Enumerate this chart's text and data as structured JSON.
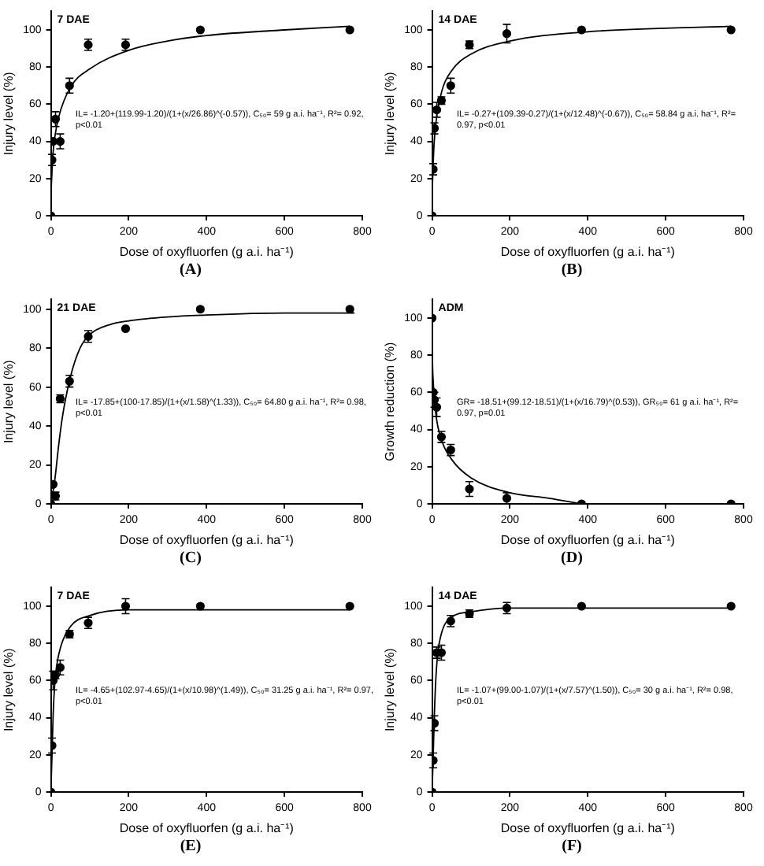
{
  "chart_data": [
    {
      "type": "scatter",
      "title": "7 DAE",
      "xlabel": "Dose of oxyfluorfen (g a.i. ha⁻¹)",
      "ylabel": "Injury level (%)",
      "xlim": [
        0,
        800
      ],
      "xticks": [
        0,
        200,
        400,
        600,
        800
      ],
      "ylim": [
        0,
        110
      ],
      "yticks": [
        0,
        20,
        40,
        60,
        80,
        100
      ],
      "grid": false,
      "annotations": [
        "IL= -1.20+(119.99-1.20)/(1+(x/26.86)^(-0.57)), C₅₀= 59 g a.i. ha⁻¹, R²= 0.92, p<0.01",
        "(A)"
      ],
      "series": [
        {
          "type": "scatter",
          "marker": "circle",
          "color": "#000000",
          "x": [
            0,
            3,
            6,
            12,
            24,
            48,
            96,
            192,
            384,
            768
          ],
          "values": [
            0,
            30,
            40,
            52,
            40,
            70,
            92,
            92,
            100,
            100
          ],
          "errors": [
            null,
            3,
            null,
            4,
            4,
            4,
            3,
            3,
            null,
            null
          ]
        },
        {
          "type": "line",
          "marker": "none",
          "color": "#000000",
          "x": [
            1,
            5,
            10,
            20,
            50,
            100,
            200,
            300,
            400,
            600,
            768
          ],
          "values": [
            15,
            32,
            42,
            53,
            69,
            79,
            89,
            94,
            97,
            100,
            102
          ]
        }
      ]
    },
    {
      "type": "scatter",
      "title": "14 DAE",
      "xlabel": "Dose of oxyfluorfen (g a.i. ha⁻¹)",
      "ylabel": "Injury level (%)",
      "xlim": [
        0,
        800
      ],
      "xticks": [
        0,
        200,
        400,
        600,
        800
      ],
      "ylim": [
        0,
        110
      ],
      "yticks": [
        0,
        20,
        40,
        60,
        80,
        100
      ],
      "grid": false,
      "annotations": [
        "IL= -0.27+(109.39-0.27)/(1+(x/12.48)^(-0.67)), C₅₀= 58.84 g a.i. ha⁻¹, R²= 0.97, p<0.01",
        "(B)"
      ],
      "series": [
        {
          "type": "scatter",
          "marker": "circle",
          "color": "#000000",
          "x": [
            0,
            3,
            6,
            12,
            24,
            48,
            96,
            192,
            384,
            768
          ],
          "values": [
            0,
            25,
            47,
            57,
            62,
            70,
            92,
            98,
            100,
            100
          ],
          "errors": [
            null,
            3,
            3,
            4,
            2,
            4,
            2,
            5,
            null,
            null
          ]
        },
        {
          "type": "line",
          "marker": "none",
          "color": "#000000",
          "x": [
            1,
            5,
            10,
            25,
            50,
            100,
            200,
            400,
            768
          ],
          "values": [
            17,
            38,
            50,
            67,
            78,
            87,
            94,
            99,
            102
          ]
        }
      ]
    },
    {
      "type": "scatter",
      "title": "21 DAE",
      "xlabel": "Dose of oxyfluorfen (g a.i. ha⁻¹)",
      "ylabel": "Injury level (%)",
      "xlim": [
        0,
        800
      ],
      "xticks": [
        0,
        200,
        400,
        600,
        800
      ],
      "ylim": [
        0,
        105
      ],
      "yticks": [
        0,
        20,
        40,
        60,
        80,
        100
      ],
      "grid": false,
      "annotations": [
        "IL= -17.85+(100-17.85)/(1+(x/1.58)^(1.33)), C₅₀= 64.80 g a.i. ha⁻¹, R²= 0.98, p<0.01",
        "(C)"
      ],
      "series": [
        {
          "type": "scatter",
          "marker": "circle",
          "color": "#000000",
          "x": [
            0,
            6,
            12,
            24,
            48,
            96,
            192,
            384,
            768
          ],
          "values": [
            0,
            10,
            4,
            54,
            63,
            86,
            90,
            100,
            100
          ],
          "errors": [
            null,
            null,
            2,
            2,
            3,
            3,
            null,
            null,
            null
          ]
        },
        {
          "type": "line",
          "marker": "none",
          "color": "#000000",
          "x": [
            0,
            10,
            20,
            30,
            50,
            75,
            100,
            150,
            200,
            300,
            400,
            600,
            780
          ],
          "values": [
            0,
            12,
            30,
            45,
            65,
            80,
            87,
            92,
            94,
            96,
            97,
            98,
            98
          ]
        }
      ]
    },
    {
      "type": "scatter",
      "title": "ADM",
      "xlabel": "Dose of oxyfluorfen (g a.i. ha⁻¹)",
      "ylabel": "Growth reduction (%)",
      "xlim": [
        0,
        800
      ],
      "xticks": [
        0,
        200,
        400,
        600,
        800
      ],
      "ylim": [
        0,
        110
      ],
      "yticks": [
        0,
        20,
        40,
        60,
        80,
        100
      ],
      "grid": false,
      "annotations": [
        "GR= -18.51+(99.12-18.51)/(1+(x/16.79)^(0.53)), GR₅₀= 61 g a.i. ha⁻¹, R²= 0.97, p=0.01",
        "(D)"
      ],
      "series": [
        {
          "type": "scatter",
          "marker": "circle",
          "color": "#000000",
          "x": [
            0,
            3,
            6,
            12,
            24,
            48,
            96,
            192,
            384,
            768
          ],
          "values": [
            100,
            60,
            56,
            52,
            36,
            29,
            8,
            3,
            0,
            0
          ],
          "errors": [
            null,
            null,
            4,
            5,
            3,
            3,
            4,
            3,
            null,
            null
          ]
        },
        {
          "type": "line",
          "marker": "none",
          "color": "#000000",
          "x": [
            0,
            1,
            3,
            10,
            25,
            50,
            100,
            200,
            300,
            384
          ],
          "values": [
            99,
            78,
            66,
            48,
            34,
            24,
            14,
            6,
            3,
            0
          ]
        }
      ]
    },
    {
      "type": "scatter",
      "title": "7 DAE",
      "xlabel": "Dose of oxyfluorfen (g a.i. ha⁻¹)",
      "ylabel": "Injury level (%)",
      "xlim": [
        0,
        800
      ],
      "xticks": [
        0,
        200,
        400,
        600,
        800
      ],
      "ylim": [
        0,
        110
      ],
      "yticks": [
        0,
        20,
        40,
        60,
        80,
        100
      ],
      "grid": false,
      "annotations": [
        "IL= -4.65+(102.97-4.65)/(1+(x/10.98)^(1.49)), C₅₀= 31.25 g a.i. ha⁻¹, R²= 0.97, p<0.01",
        "(E)"
      ],
      "series": [
        {
          "type": "scatter",
          "marker": "circle",
          "color": "#000000",
          "x": [
            0,
            3,
            6,
            12,
            24,
            48,
            96,
            192,
            384,
            768
          ],
          "values": [
            0,
            25,
            60,
            63,
            67,
            85,
            91,
            100,
            100,
            100
          ],
          "errors": [
            null,
            4,
            5,
            2,
            4,
            2,
            3,
            4,
            null,
            null
          ]
        },
        {
          "type": "line",
          "marker": "none",
          "color": "#000000",
          "x": [
            0,
            3,
            6,
            10,
            15,
            25,
            50,
            100,
            200,
            400,
            768
          ],
          "values": [
            0,
            20,
            42,
            58,
            68,
            78,
            89,
            95,
            98,
            98,
            98
          ]
        }
      ]
    },
    {
      "type": "scatter",
      "title": "14 DAE",
      "xlabel": "Dose of oxyfluorfen (g a.i. ha⁻¹)",
      "ylabel": "Injury level (%)",
      "xlim": [
        0,
        800
      ],
      "xticks": [
        0,
        200,
        400,
        600,
        800
      ],
      "ylim": [
        0,
        110
      ],
      "yticks": [
        0,
        20,
        40,
        60,
        80,
        100
      ],
      "grid": false,
      "annotations": [
        "IL= -1.07+(99.00-1.07)/(1+(x/7.57)^(1.50)), C₅₀= 30 g a.i. ha⁻¹, R²= 0.98, p<0.01",
        "(F)"
      ],
      "series": [
        {
          "type": "scatter",
          "marker": "circle",
          "color": "#000000",
          "x": [
            0,
            3,
            6,
            12,
            24,
            48,
            96,
            192,
            384,
            768
          ],
          "values": [
            0,
            17,
            37,
            75,
            75,
            92,
            96,
            99,
            100,
            100
          ],
          "errors": [
            null,
            4,
            4,
            3,
            4,
            3,
            2,
            3,
            null,
            null
          ]
        },
        {
          "type": "line",
          "marker": "none",
          "color": "#000000",
          "x": [
            0,
            3,
            6,
            10,
            15,
            25,
            50,
            100,
            200,
            400,
            768
          ],
          "values": [
            0,
            20,
            42,
            62,
            75,
            86,
            94,
            97,
            99,
            99,
            99
          ]
        }
      ]
    }
  ]
}
